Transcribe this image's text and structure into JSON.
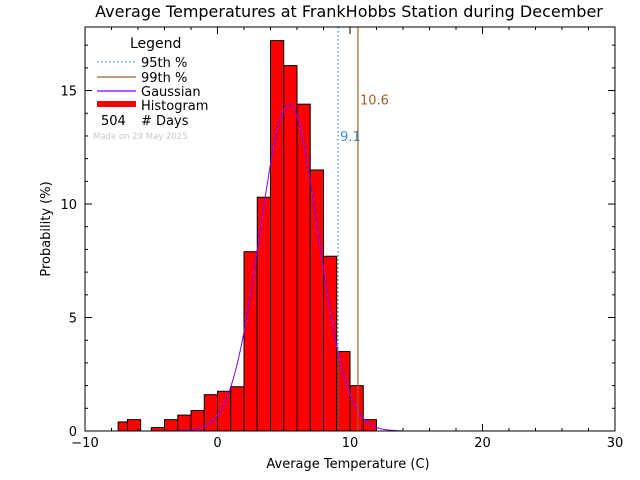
{
  "chart_data": {
    "type": "bar",
    "title": "Average Temperatures at FrankHobbs Station during December",
    "xlabel": "Average Temperature (C)",
    "ylabel": "Probability (%)",
    "xlim": [
      -10,
      30
    ],
    "ylim": [
      0,
      17.8
    ],
    "xticks": [
      -10,
      0,
      10,
      20,
      30
    ],
    "yticks": [
      0,
      5,
      10,
      15
    ],
    "legend": {
      "title": "Legend",
      "position": "top-left",
      "entries": [
        {
          "label": "95th %",
          "style": "dotted",
          "color": "#3a8fd0"
        },
        {
          "label": "99th %",
          "style": "solid",
          "color": "#a0622d"
        },
        {
          "label": "Gaussian",
          "style": "solid",
          "color": "#8000ff"
        },
        {
          "label": "Histogram",
          "style": "bar",
          "color": "#ff0000"
        }
      ],
      "days_count": "504",
      "days_label": "# Days",
      "made_on": "Made on 29 May 2025"
    },
    "histogram": {
      "bin_width": 1,
      "bins": [
        {
          "x0": -7.5,
          "value": 0.4
        },
        {
          "x0": -6.8,
          "value": 0.5
        },
        {
          "x0": -5.0,
          "value": 0.15
        },
        {
          "x0": -4.0,
          "value": 0.5
        },
        {
          "x0": -3.0,
          "value": 0.7
        },
        {
          "x0": -2.0,
          "value": 0.9
        },
        {
          "x0": -1.0,
          "value": 1.6
        },
        {
          "x0": 0.0,
          "value": 1.75
        },
        {
          "x0": 1.0,
          "value": 1.95
        },
        {
          "x0": 2.0,
          "value": 7.9
        },
        {
          "x0": 3.0,
          "value": 10.3
        },
        {
          "x0": 4.0,
          "value": 17.2
        },
        {
          "x0": 5.0,
          "value": 16.1
        },
        {
          "x0": 6.0,
          "value": 14.4
        },
        {
          "x0": 7.0,
          "value": 11.5
        },
        {
          "x0": 8.0,
          "value": 7.7
        },
        {
          "x0": 9.0,
          "value": 3.5
        },
        {
          "x0": 10.0,
          "value": 2.0
        },
        {
          "x0": 11.0,
          "value": 0.5
        }
      ]
    },
    "gaussian": {
      "mean": 5.4,
      "sd": 2.2,
      "peak": 14.4,
      "color": "#8000ff"
    },
    "percentiles": [
      {
        "name": "95th %",
        "value": 9.1,
        "label": "9.1",
        "color": "#3a8fd0",
        "style": "dotted",
        "label_y": 13.0
      },
      {
        "name": "99th %",
        "value": 10.6,
        "label": "10.6",
        "color": "#a0622d",
        "style": "solid",
        "label_y": 14.6
      }
    ],
    "colors": {
      "histogram": "#ff0000",
      "axis": "#000000"
    }
  }
}
